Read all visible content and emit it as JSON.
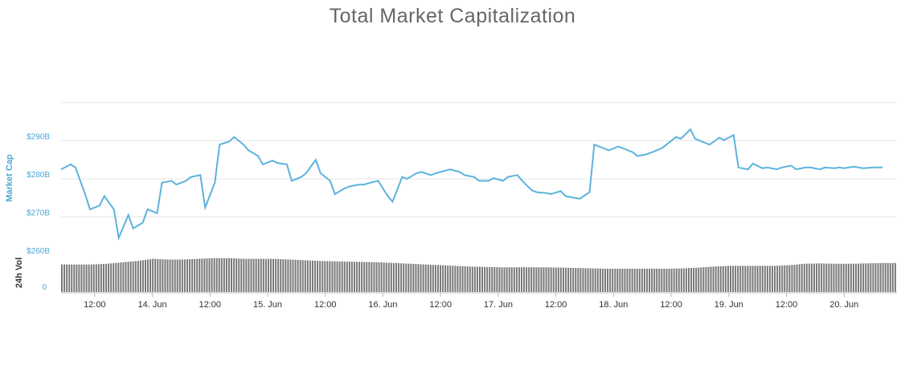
{
  "title": "Total Market Capitalization",
  "colors": {
    "line": "#5cb3dc",
    "ytick": "#4aa8d8",
    "grid": "#e6e6e6",
    "volume": "#777777",
    "axis_label": "#4aa8d8",
    "vol_label": "#333333"
  },
  "chart_data": [
    {
      "type": "line",
      "title": "Total Market Capitalization",
      "ylabel": "Market Cap",
      "x_ticks": [
        "12:00",
        "14. Jun",
        "12:00",
        "15. Jun",
        "12:00",
        "16. Jun",
        "12:00",
        "17. Jun",
        "12:00",
        "18. Jun",
        "12:00",
        "19. Jun",
        "12:00",
        "20. Jun"
      ],
      "x_range": [
        "13. Jun 05:00",
        "20. Jun 12:00"
      ],
      "y_ticks": [
        "$260B",
        "$270B",
        "$280B",
        "$290B"
      ],
      "y_tick_values": [
        260,
        270,
        280,
        290
      ],
      "ylim": [
        260,
        300
      ],
      "grid": true,
      "legend": "none",
      "series": [
        {
          "x_hours": [
            0,
            2,
            3,
            5,
            6,
            8,
            9,
            11,
            12,
            14,
            15,
            17,
            18,
            20,
            21,
            23,
            24,
            26,
            27,
            29,
            30,
            32,
            33,
            35,
            36,
            38,
            39,
            41,
            42,
            44,
            45,
            47,
            48,
            50,
            51,
            53,
            54,
            56,
            57,
            59,
            60,
            62,
            63,
            65,
            66,
            68,
            69,
            71,
            72,
            74,
            75,
            77,
            78,
            80,
            81,
            83,
            84,
            86,
            87,
            89,
            90,
            92,
            93,
            95,
            96,
            98,
            99,
            101,
            102,
            104,
            105,
            107,
            108,
            110,
            111,
            113,
            114,
            116,
            117,
            119,
            120,
            122,
            123,
            125,
            126,
            128,
            129,
            131,
            132,
            134,
            135,
            137,
            138,
            140,
            141,
            143,
            144,
            146,
            147,
            149,
            150,
            152,
            153,
            155,
            156,
            158,
            159,
            161,
            162,
            163,
            164,
            165,
            166,
            167,
            169,
            171
          ],
          "values": [
            282.5,
            283.8,
            283.0,
            276.0,
            272.0,
            273.0,
            275.5,
            272.0,
            264.5,
            270.5,
            267.0,
            268.5,
            272.0,
            271.0,
            279.0,
            279.5,
            278.5,
            279.5,
            280.5,
            281.0,
            272.5,
            279.0,
            289.0,
            289.8,
            291.0,
            289.0,
            287.5,
            286.0,
            283.8,
            284.8,
            284.2,
            283.8,
            279.5,
            280.5,
            281.5,
            285.0,
            281.5,
            279.5,
            276.0,
            277.5,
            278.0,
            278.5,
            278.5,
            279.2,
            279.5,
            275.5,
            274.0,
            280.5,
            280.0,
            281.5,
            281.8,
            281.0,
            281.5,
            282.2,
            282.5,
            281.8,
            281.0,
            280.5,
            279.5,
            279.5,
            280.2,
            279.5,
            280.5,
            281.0,
            279.5,
            277.0,
            276.5,
            276.3,
            276.0,
            276.8,
            275.5,
            275.0,
            274.8,
            276.5,
            289.0,
            288.0,
            287.5,
            288.5,
            288.0,
            287.0,
            286.0,
            286.5,
            287.0,
            288.0,
            289.0,
            291.0,
            290.5,
            293.0,
            290.5,
            289.5,
            289.0,
            290.8,
            290.2,
            291.5,
            283.0,
            282.5,
            284.0,
            282.8,
            283.0,
            282.5,
            283.0,
            283.5,
            282.5,
            283.0,
            283.0,
            282.5,
            283.0,
            282.8,
            283.0,
            282.8,
            283.0,
            283.2,
            283.0,
            282.8,
            283.0,
            283.0
          ]
        }
      ]
    },
    {
      "type": "bar",
      "ylabel": "24h Vol",
      "y_ticks": [
        "0"
      ],
      "ylim": [
        0,
        1
      ],
      "grid": false,
      "legend": "none",
      "series": [
        {
          "relative_values": [
            0.78,
            0.78,
            0.78,
            0.8,
            0.84,
            0.88,
            0.94,
            0.92,
            0.92,
            0.94,
            0.96,
            0.96,
            0.94,
            0.94,
            0.94,
            0.92,
            0.9,
            0.88,
            0.87,
            0.86,
            0.85,
            0.84,
            0.82,
            0.8,
            0.78,
            0.76,
            0.74,
            0.72,
            0.71,
            0.7,
            0.7,
            0.7,
            0.7,
            0.69,
            0.68,
            0.67,
            0.66,
            0.66,
            0.66,
            0.66,
            0.66,
            0.67,
            0.69,
            0.72,
            0.74,
            0.74,
            0.74,
            0.74,
            0.76,
            0.8,
            0.81,
            0.8,
            0.8,
            0.81,
            0.82,
            0.82
          ]
        }
      ]
    }
  ]
}
